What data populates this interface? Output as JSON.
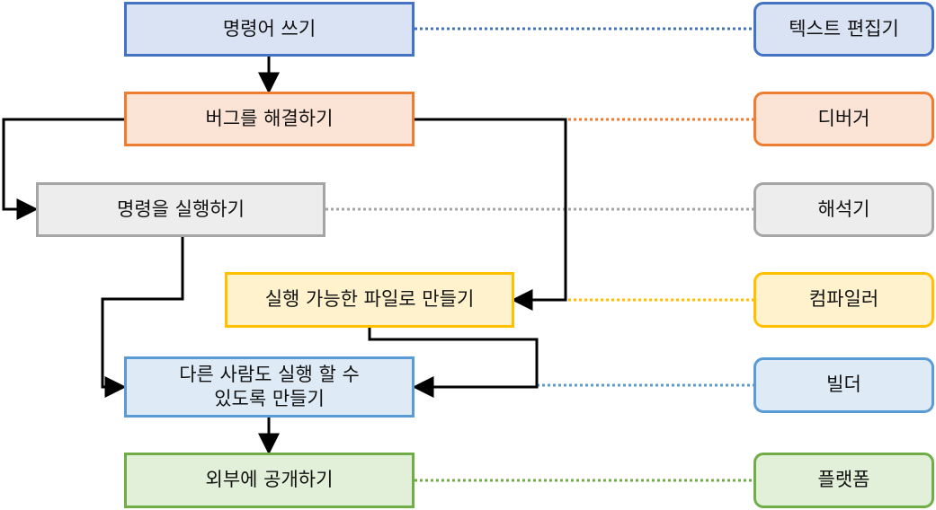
{
  "colors": {
    "blue": "#4472c4",
    "orange": "#ed7d31",
    "gray": "#a5a5a5",
    "yellow": "#ffc000",
    "light_blue": "#5b9bd5",
    "green": "#70ad47",
    "arrow": "#000000"
  },
  "steps": {
    "write_code": "명령어 쓰기",
    "fix_bugs": "버그를 해결하기",
    "run_code": "명령을 실행하기",
    "make_executable": "실행 가능한 파일로 만들기",
    "make_runnable_line1": "다른 사람도 실행 할 수",
    "make_runnable_line2": "있도록 만들기",
    "publish": "외부에 공개하기"
  },
  "tools": {
    "text_editor": "텍스트 편집기",
    "debugger": "디버거",
    "interpreter": "해석기",
    "compiler": "컴파일러",
    "builder": "빌더",
    "platform": "플랫폼"
  }
}
